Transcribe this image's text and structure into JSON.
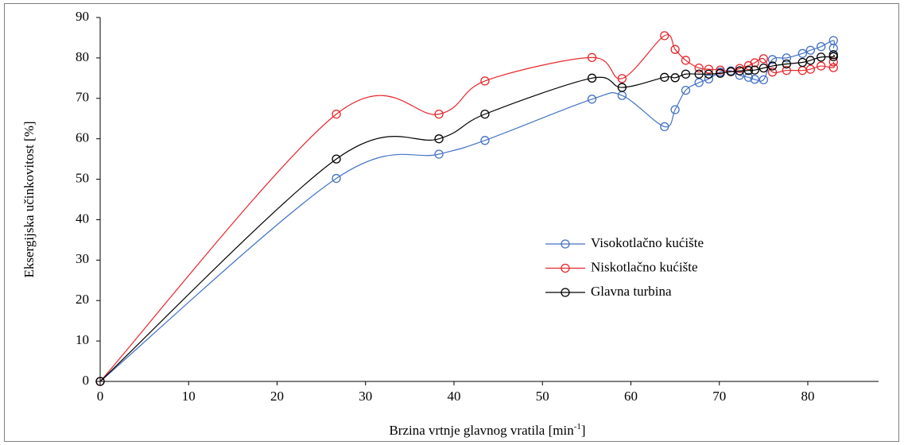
{
  "chart_data": {
    "type": "line",
    "x_label": {
      "text": "Brzina vrtnje glavnog vratila [min",
      "superscript": "-1",
      "suffix": "]"
    },
    "y_label": "Eksergijska učinkovitost [%]",
    "xlim": [
      0,
      88
    ],
    "xticks": [
      0,
      10,
      20,
      30,
      40,
      50,
      60,
      70,
      80
    ],
    "ylim": [
      0,
      90
    ],
    "yticks": [
      0,
      10,
      20,
      30,
      40,
      50,
      60,
      70,
      80,
      90
    ],
    "grid": false,
    "legend": "center-right",
    "series": [
      {
        "name": "Visokotlačno kućište",
        "color": "#4472c4",
        "x": [
          0,
          26.7,
          38.3,
          43.5,
          55.6,
          59.0,
          63.8,
          65.0,
          66.2,
          67.7,
          68.8,
          70.1,
          71.3,
          72.3,
          73.3,
          74.0,
          75.0,
          76.0,
          77.6,
          79.4,
          80.3,
          81.5,
          82.9,
          82.9
        ],
        "values": [
          0,
          50.2,
          56.2,
          59.6,
          69.8,
          70.7,
          63.0,
          67.2,
          72.0,
          73.9,
          74.8,
          76.5,
          76.8,
          75.7,
          75.2,
          74.7,
          74.6,
          79.6,
          80.0,
          81.1,
          81.9,
          82.8,
          84.3,
          82.4
        ]
      },
      {
        "name": "Niskotlačno kućište",
        "color": "#e8262b",
        "x": [
          0,
          26.7,
          38.3,
          43.5,
          55.6,
          59.0,
          63.8,
          65.0,
          66.2,
          67.7,
          68.8,
          70.1,
          71.3,
          72.3,
          73.3,
          74.0,
          75.0,
          76.0,
          77.6,
          79.4,
          80.3,
          81.5,
          82.9,
          82.9
        ],
        "values": [
          0,
          66.1,
          66.1,
          74.3,
          80.1,
          74.9,
          85.5,
          82.1,
          79.4,
          77.5,
          77.2,
          77.0,
          76.6,
          77.4,
          78.1,
          78.8,
          79.8,
          76.5,
          76.9,
          76.9,
          77.2,
          78.0,
          77.6,
          79.0
        ]
      },
      {
        "name": "Glavna turbina",
        "color": "#000000",
        "x": [
          0,
          26.7,
          38.3,
          43.5,
          55.6,
          59.0,
          63.8,
          65.0,
          66.2,
          67.7,
          68.8,
          70.1,
          71.3,
          72.3,
          73.3,
          74.0,
          75.0,
          76.0,
          77.6,
          79.4,
          80.3,
          81.5,
          82.9,
          82.9
        ],
        "values": [
          0,
          55.0,
          60.0,
          66.1,
          75.0,
          72.7,
          75.2,
          75.1,
          76.0,
          76.0,
          76.0,
          76.2,
          76.6,
          76.8,
          76.9,
          77.0,
          77.5,
          78.0,
          78.5,
          78.9,
          79.4,
          80.2,
          80.3,
          80.8
        ]
      }
    ]
  }
}
